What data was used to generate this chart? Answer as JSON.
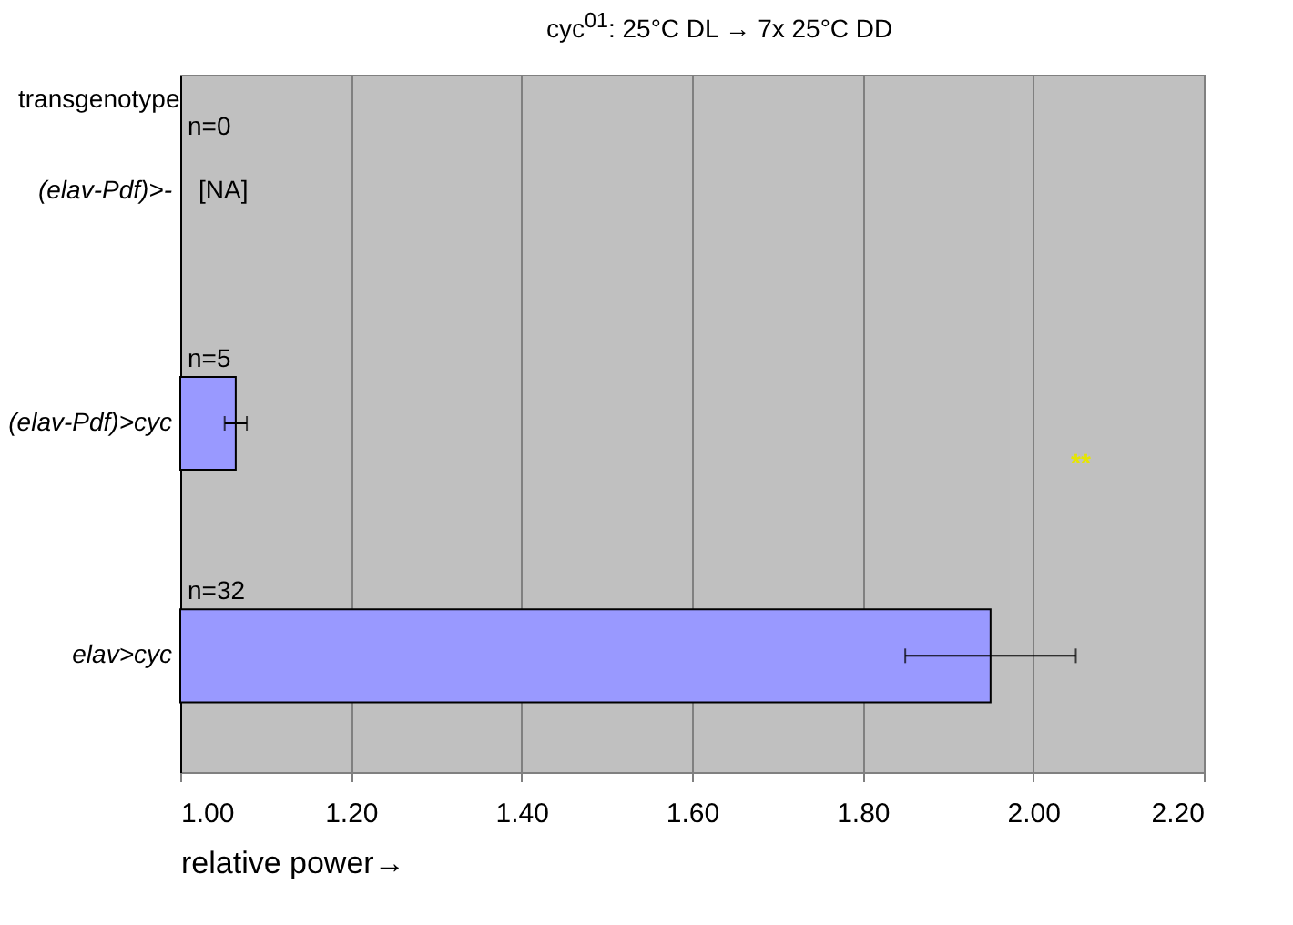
{
  "chart_data": {
    "type": "bar",
    "orientation": "horizontal",
    "title": "cyc$^{01}$: 25°C DL → 7x 25°C DD",
    "xlabel": "relative power→",
    "categories": [
      "(elav-Pdf)>-",
      "(elav-Pdf)>cyc",
      "elav>cyc"
    ],
    "values": [
      null,
      1.065,
      1.95
    ],
    "errors": [
      null,
      0.013,
      0.1
    ],
    "value_labels": [
      "[NA]",
      null,
      null
    ],
    "color": "#9999ff",
    "xlim": [
      1.0,
      2.2
    ],
    "xticks": [
      {
        "value": 1.0,
        "label": "1.00"
      },
      {
        "value": 1.2,
        "label": "1.20"
      },
      {
        "value": 1.4,
        "label": "1.40"
      },
      {
        "value": 1.6,
        "label": "1.60"
      },
      {
        "value": 1.8,
        "label": "1.80"
      },
      {
        "value": 2.0,
        "label": "2.00"
      },
      {
        "value": 2.2,
        "label": "2.20"
      }
    ],
    "grid": true,
    "annotations": [
      "transgenotype",
      "n=0",
      "n=5",
      "n=32",
      "**"
    ]
  }
}
